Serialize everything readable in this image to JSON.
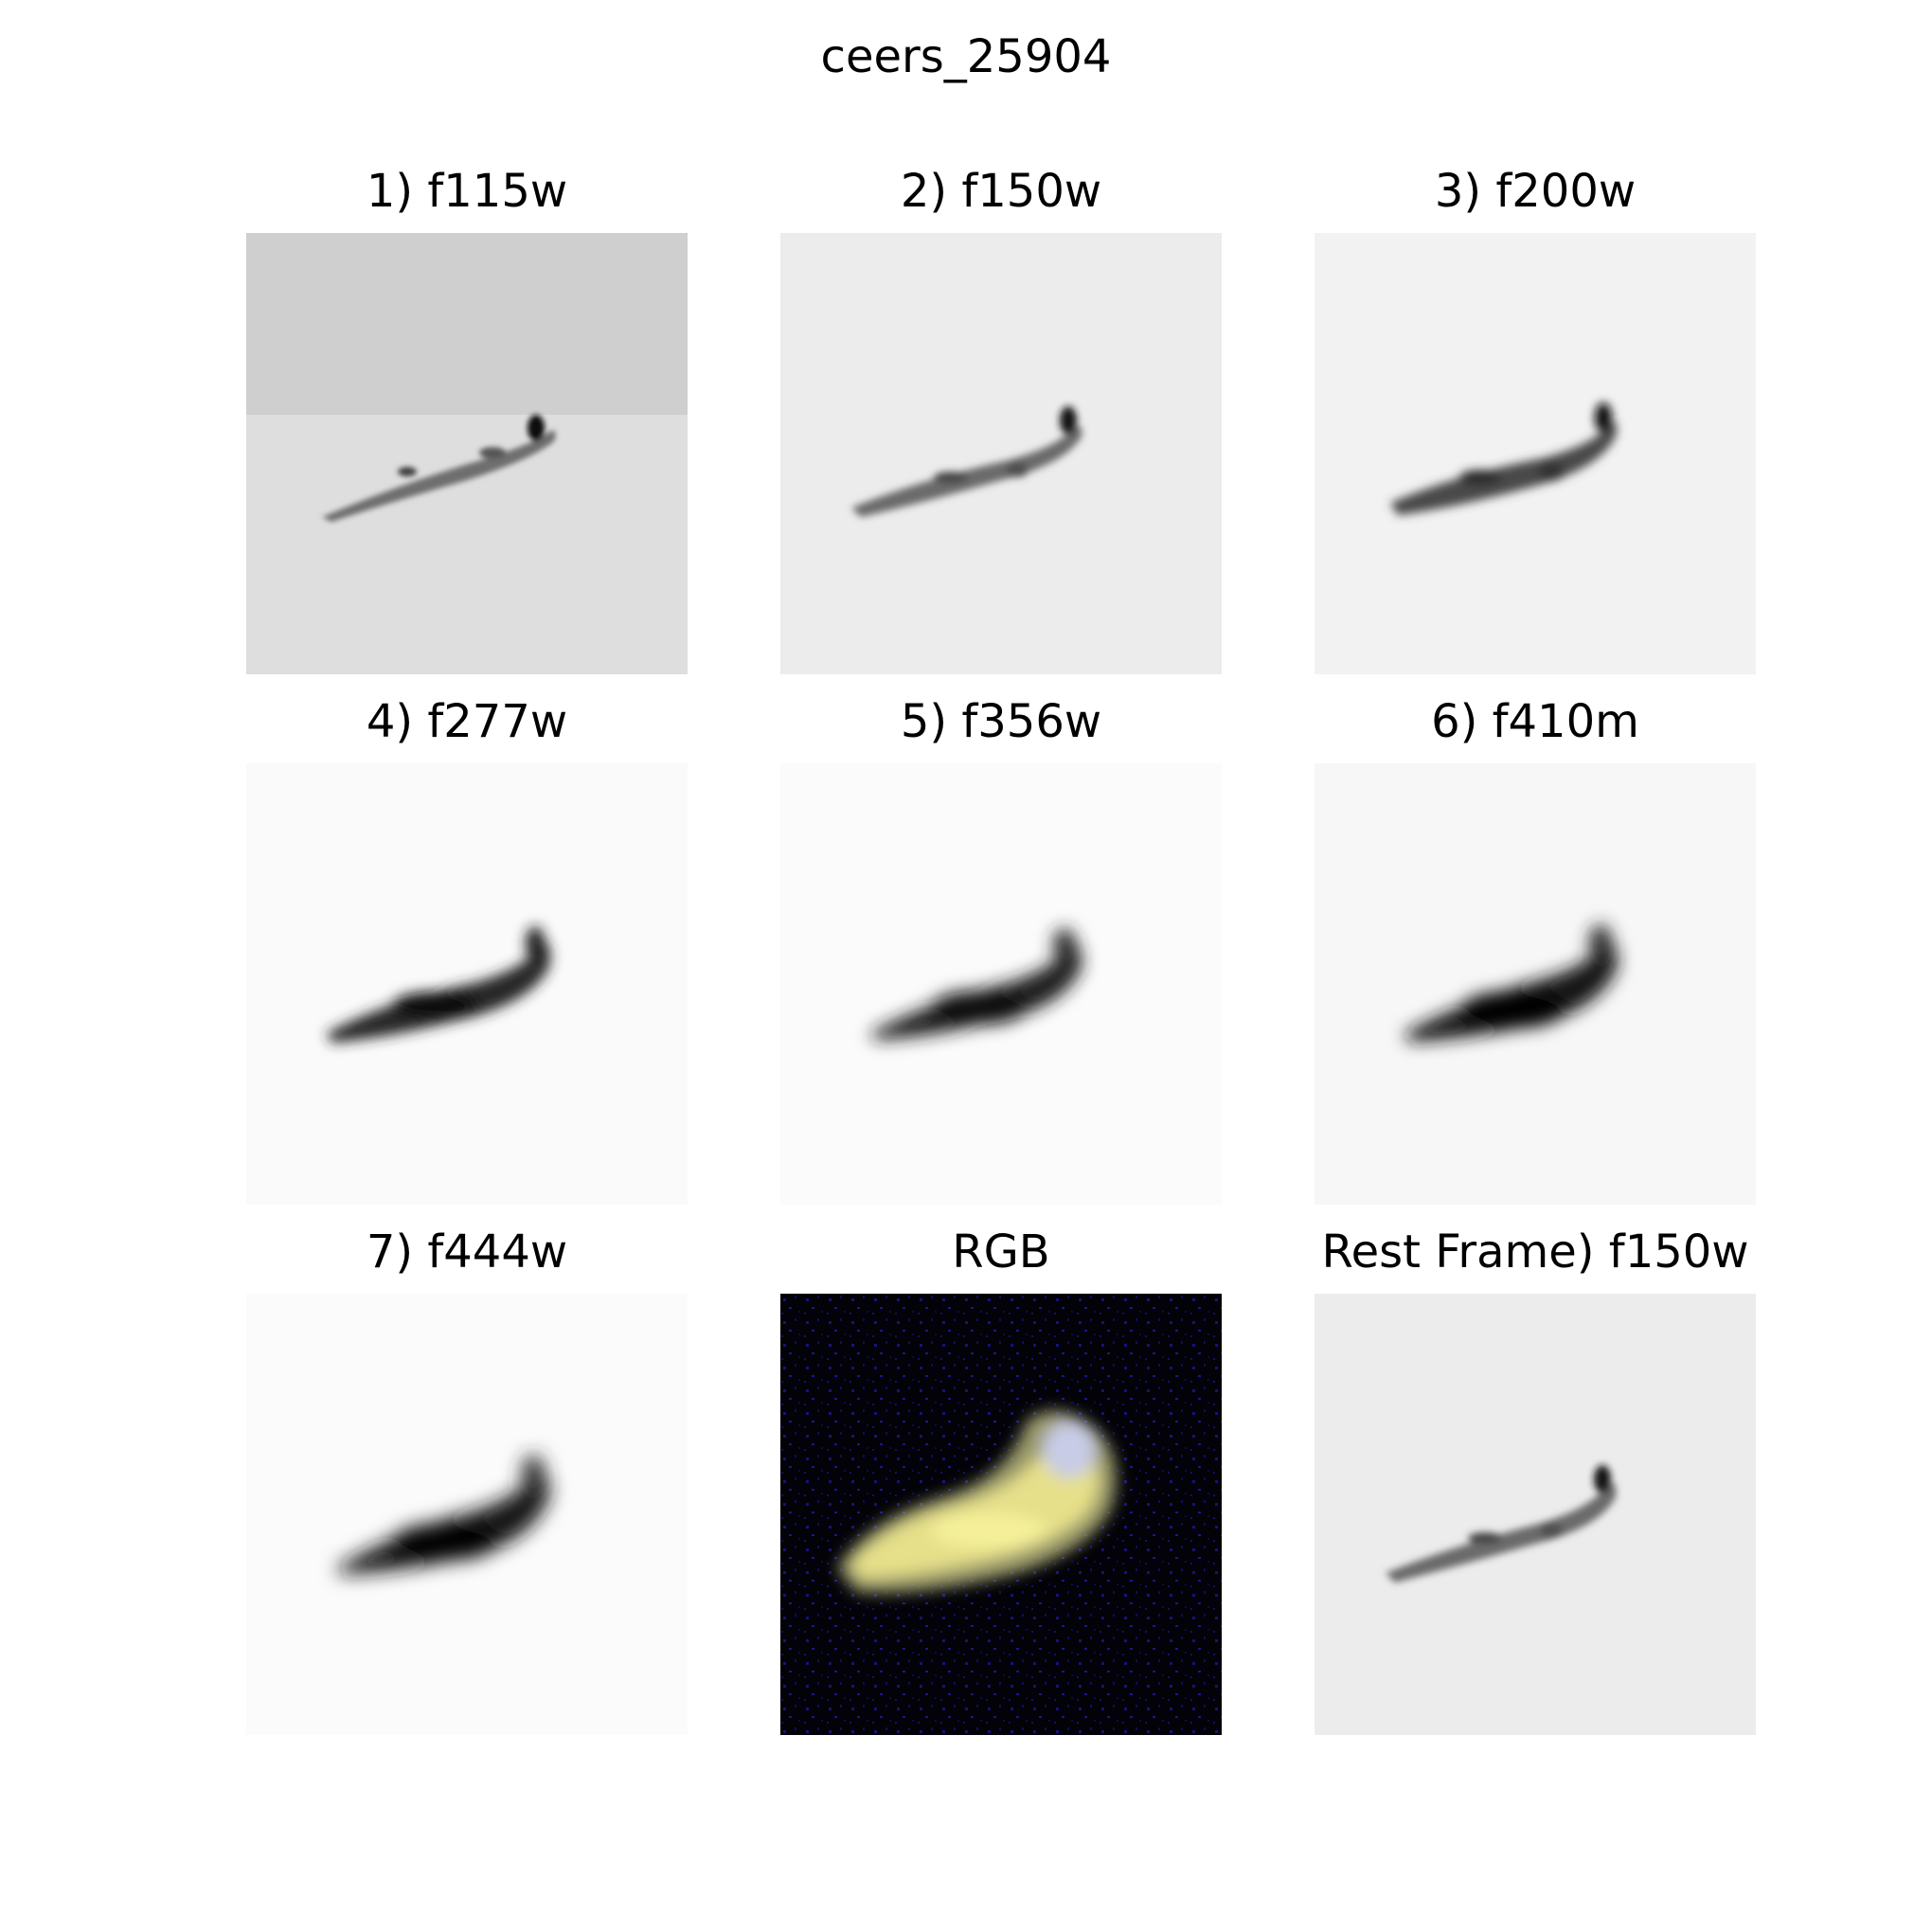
{
  "figure": {
    "title": "ceers_25904"
  },
  "panels": [
    {
      "label": "1) f115w"
    },
    {
      "label": "2) f150w"
    },
    {
      "label": "3) f200w"
    },
    {
      "label": "4) f277w"
    },
    {
      "label": "5) f356w"
    },
    {
      "label": "6) f410m"
    },
    {
      "label": "7) f444w"
    },
    {
      "label": "RGB"
    },
    {
      "label": "Rest Frame) f150w"
    }
  ]
}
